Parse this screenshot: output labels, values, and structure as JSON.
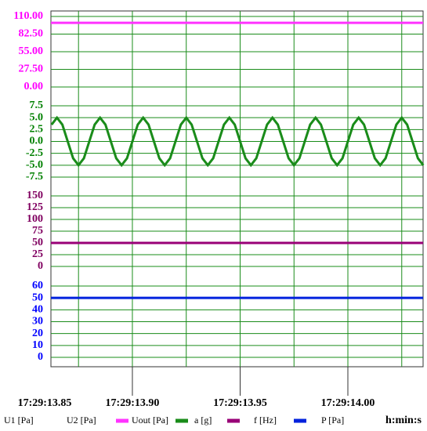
{
  "chart_data": {
    "type": "line",
    "xlim": [
      13.8622,
      14.0349
    ],
    "xticks": [
      {
        "value": 13.85,
        "label": "17:29:13.85"
      },
      {
        "value": 13.9,
        "label": "17:29:13.90"
      },
      {
        "value": 13.95,
        "label": "17:29:13.95"
      },
      {
        "value": 14.0,
        "label": "17:29:14.00"
      }
    ],
    "xminor": [
      13.875,
      13.925,
      13.975,
      14.025
    ],
    "x_unit": "h:min:s",
    "grid": true,
    "legend_names_without_marks": [
      "U1 [Pa]",
      "U2 [Pa]"
    ],
    "panels": [
      {
        "color": "#ff00ff",
        "ylim": [
          0,
          110
        ],
        "yticks": [
          {
            "value": 110,
            "label": "110.00"
          },
          {
            "value": 82.5,
            "label": "82.50"
          },
          {
            "value": 55,
            "label": "55.00"
          },
          {
            "value": 27.5,
            "label": "27.50"
          },
          {
            "value": 0,
            "label": "0.00"
          }
        ],
        "series": [
          {
            "name": "Uout [Pa]",
            "color": "#ff33ff",
            "x": [
              13.8622,
              14.0349
            ],
            "values": [
              100,
              100
            ]
          }
        ]
      },
      {
        "color": "#008000",
        "ylim": [
          -7.5,
          7.5
        ],
        "yticks": [
          7.5,
          {
            "value": 5,
            "label": "5.0"
          },
          2.5,
          {
            "value": 0,
            "label": "0.0"
          },
          -2.5,
          {
            "value": -5,
            "label": "-5.0"
          },
          -7.5
        ],
        "series": [
          {
            "name": "a [g]",
            "color": "#1a8c1a",
            "x": [
              13.8625,
              13.865,
              13.8675,
              13.87,
              13.8725,
              13.875,
              13.8775,
              13.88,
              13.8825,
              13.885,
              13.8875,
              13.89,
              13.8925,
              13.895,
              13.8975,
              13.9,
              13.9025,
              13.905,
              13.9075,
              13.91,
              13.9125,
              13.915,
              13.9175,
              13.92,
              13.9225,
              13.925,
              13.9275,
              13.93,
              13.9325,
              13.935,
              13.9375,
              13.94,
              13.9425,
              13.945,
              13.9475,
              13.95,
              13.9525,
              13.955,
              13.9575,
              13.96,
              13.9625,
              13.965,
              13.9675,
              13.97,
              13.9725,
              13.975,
              13.9775,
              13.98,
              13.9825,
              13.985,
              13.9875,
              13.99,
              13.9925,
              13.995,
              13.9975,
              14.0,
              14.0025,
              14.005,
              14.0075,
              14.01,
              14.0125,
              14.015,
              14.0175,
              14.02,
              14.0225,
              14.025,
              14.0275,
              14.03,
              14.0325,
              14.035
            ],
            "values": [
              3.54,
              5,
              3.54,
              0,
              -3.54,
              -5,
              -3.54,
              0,
              3.54,
              5,
              3.54,
              0,
              -3.54,
              -5,
              -3.54,
              0,
              3.54,
              5,
              3.54,
              0,
              -3.54,
              -5,
              -3.54,
              0,
              3.54,
              5,
              3.54,
              0,
              -3.54,
              -5,
              -3.54,
              0,
              3.54,
              5,
              3.54,
              0,
              -3.54,
              -5,
              -3.54,
              0,
              3.54,
              5,
              3.54,
              0,
              -3.54,
              -5,
              -3.54,
              0,
              3.54,
              5,
              3.54,
              0,
              -3.54,
              -5,
              -3.54,
              0,
              3.54,
              5,
              3.54,
              0,
              -3.54,
              -5,
              -3.54,
              0,
              3.54,
              5,
              3.54,
              0,
              -3.54,
              -5
            ]
          }
        ]
      },
      {
        "color": "#800060",
        "ylim": [
          0,
          150
        ],
        "yticks": [
          150,
          125,
          100,
          75,
          50,
          25,
          0
        ],
        "series": [
          {
            "name": "f [Hz]",
            "color": "#990077",
            "x": [
              13.8622,
              14.0349
            ],
            "values": [
              50,
              50
            ]
          }
        ]
      },
      {
        "color": "#0000ff",
        "ylim": [
          0,
          60
        ],
        "yticks": [
          60,
          50,
          40,
          30,
          20,
          10,
          0
        ],
        "series": [
          {
            "name": "P [Pa]",
            "color": "#0022dd",
            "x": [
              13.8622,
              14.0349
            ],
            "values": [
              50,
              50
            ]
          }
        ]
      }
    ]
  }
}
